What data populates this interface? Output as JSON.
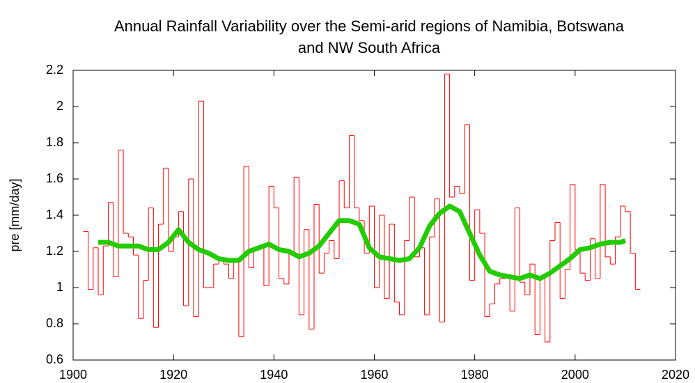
{
  "chart_data": {
    "type": "step-line",
    "title": "Annual Rainfall Variability over the Semi-arid regions of Namibia, Botswana and NW South Africa",
    "y_label": "pre [mm/day]",
    "xlim": [
      1900,
      2020
    ],
    "xticks": [
      1900,
      1920,
      1940,
      1960,
      1980,
      2000,
      2020
    ],
    "ylim": [
      0.6,
      2.2
    ],
    "yticks": [
      0.6,
      0.8,
      1,
      1.2,
      1.4,
      1.6,
      1.8,
      2,
      2.2
    ],
    "series": [
      {
        "style": "steps",
        "color": "#ff0000",
        "x": [
          1902,
          1903,
          1904,
          1905,
          1906,
          1907,
          1908,
          1909,
          1910,
          1911,
          1912,
          1913,
          1914,
          1915,
          1916,
          1917,
          1918,
          1919,
          1920,
          1921,
          1922,
          1923,
          1924,
          1925,
          1926,
          1927,
          1928,
          1929,
          1930,
          1931,
          1932,
          1933,
          1934,
          1935,
          1936,
          1937,
          1938,
          1939,
          1940,
          1941,
          1942,
          1943,
          1944,
          1945,
          1946,
          1947,
          1948,
          1949,
          1950,
          1951,
          1952,
          1953,
          1954,
          1955,
          1956,
          1957,
          1958,
          1959,
          1960,
          1961,
          1962,
          1963,
          1964,
          1965,
          1966,
          1967,
          1968,
          1969,
          1970,
          1971,
          1972,
          1973,
          1974,
          1975,
          1976,
          1977,
          1978,
          1979,
          1980,
          1981,
          1982,
          1983,
          1984,
          1985,
          1986,
          1987,
          1988,
          1989,
          1990,
          1991,
          1992,
          1993,
          1994,
          1995,
          1996,
          1997,
          1998,
          1999,
          2000,
          2001,
          2002,
          2003,
          2004,
          2005,
          2006,
          2007,
          2008,
          2009,
          2010,
          2011,
          2012
        ],
        "values": [
          1.31,
          0.99,
          1.22,
          0.96,
          1.23,
          1.47,
          1.06,
          1.76,
          1.3,
          1.28,
          1.18,
          0.83,
          1.04,
          1.44,
          0.78,
          1.35,
          1.66,
          1.2,
          1.28,
          1.42,
          0.9,
          1.6,
          0.84,
          2.03,
          1.0,
          1.0,
          1.13,
          1.15,
          1.13,
          1.05,
          1.16,
          0.73,
          1.67,
          1.11,
          1.21,
          1.22,
          1.01,
          1.56,
          1.44,
          1.05,
          1.02,
          1.2,
          1.61,
          0.85,
          1.32,
          0.77,
          1.46,
          1.08,
          1.19,
          1.26,
          1.16,
          1.59,
          1.44,
          1.84,
          1.44,
          1.37,
          1.19,
          1.45,
          1.0,
          1.4,
          0.94,
          1.35,
          0.92,
          0.85,
          1.26,
          1.5,
          1.17,
          1.22,
          0.85,
          1.28,
          1.49,
          0.81,
          2.18,
          1.5,
          1.56,
          1.52,
          1.9,
          1.04,
          1.43,
          1.3,
          0.84,
          0.91,
          1.02,
          1.05,
          1.06,
          0.87,
          1.44,
          1.03,
          0.96,
          1.13,
          0.74,
          1.05,
          0.7,
          1.26,
          1.36,
          0.94,
          1.1,
          1.57,
          1.21,
          1.08,
          1.04,
          1.27,
          1.05,
          1.57,
          1.17,
          1.13,
          1.28,
          1.45,
          1.42,
          1.19,
          0.99
        ]
      },
      {
        "style": "smooth",
        "color": "#22cc00",
        "x": [
          1905,
          1907,
          1909,
          1911,
          1913,
          1915,
          1917,
          1919,
          1921,
          1923,
          1925,
          1927,
          1929,
          1931,
          1933,
          1935,
          1937,
          1939,
          1941,
          1943,
          1945,
          1947,
          1949,
          1951,
          1953,
          1955,
          1957,
          1959,
          1961,
          1963,
          1965,
          1967,
          1969,
          1971,
          1973,
          1975,
          1977,
          1979,
          1981,
          1983,
          1985,
          1987,
          1989,
          1991,
          1993,
          1995,
          1997,
          1999,
          2001,
          2003,
          2005,
          2007,
          2009,
          2010
        ],
        "values": [
          1.25,
          1.25,
          1.23,
          1.23,
          1.23,
          1.21,
          1.21,
          1.25,
          1.32,
          1.25,
          1.21,
          1.19,
          1.16,
          1.15,
          1.15,
          1.2,
          1.22,
          1.24,
          1.21,
          1.2,
          1.17,
          1.19,
          1.23,
          1.3,
          1.37,
          1.37,
          1.35,
          1.22,
          1.17,
          1.16,
          1.15,
          1.16,
          1.22,
          1.34,
          1.41,
          1.45,
          1.42,
          1.3,
          1.18,
          1.09,
          1.07,
          1.06,
          1.05,
          1.07,
          1.05,
          1.08,
          1.12,
          1.16,
          1.21,
          1.22,
          1.24,
          1.25,
          1.25,
          1.26
        ]
      }
    ]
  }
}
